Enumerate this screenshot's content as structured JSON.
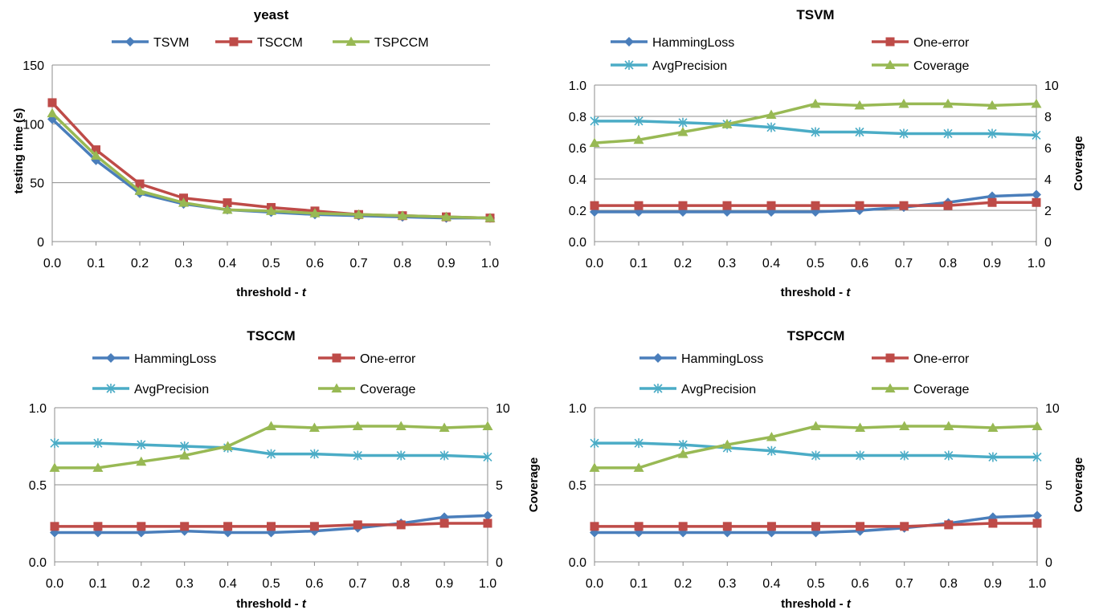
{
  "chart_data": [
    {
      "type": "line",
      "title": "yeast",
      "xlabel": "threshold - t",
      "ylabel": "testing time (s)",
      "x": [
        0.0,
        0.1,
        0.2,
        0.3,
        0.4,
        0.5,
        0.6,
        0.7,
        0.8,
        0.9,
        1.0
      ],
      "x_ticks": [
        "0.0",
        "0.1",
        "0.2",
        "0.3",
        "0.4",
        "0.5",
        "0.6",
        "0.7",
        "0.8",
        "0.9",
        "1.0"
      ],
      "ylim": [
        0,
        150
      ],
      "y_ticks": [
        "0",
        "50",
        "100",
        "150"
      ],
      "grid": true,
      "legend": "top",
      "series": [
        {
          "name": "TSVM",
          "color": "#4a7ebb",
          "marker": "diamond",
          "axis": "left",
          "values": [
            104,
            69,
            41,
            32,
            27,
            25,
            23,
            22,
            21,
            20,
            20
          ]
        },
        {
          "name": "TSCCM",
          "color": "#be4b48",
          "marker": "square",
          "axis": "left",
          "values": [
            118,
            78,
            49,
            37,
            33,
            29,
            26,
            23,
            22,
            21,
            20
          ]
        },
        {
          "name": "TSPCCM",
          "color": "#98b954",
          "marker": "triangle",
          "axis": "left",
          "values": [
            109,
            73,
            43,
            33,
            27,
            26,
            24,
            23,
            22,
            21,
            20
          ]
        }
      ]
    },
    {
      "type": "line",
      "title": "TSVM",
      "xlabel": "threshold - t",
      "ylabel": "",
      "y2label": "Coverage",
      "x": [
        0.0,
        0.1,
        0.2,
        0.3,
        0.4,
        0.5,
        0.6,
        0.7,
        0.8,
        0.9,
        1.0
      ],
      "x_ticks": [
        "0.0",
        "0.1",
        "0.2",
        "0.3",
        "0.4",
        "0.5",
        "0.6",
        "0.7",
        "0.8",
        "0.9",
        "1.0"
      ],
      "ylim": [
        0,
        1.0
      ],
      "y_ticks": [
        "0.0",
        "0.2",
        "0.4",
        "0.6",
        "0.8",
        "1.0"
      ],
      "y2lim": [
        0,
        10
      ],
      "y2_ticks": [
        "0",
        "2",
        "4",
        "6",
        "8",
        "10"
      ],
      "grid": true,
      "legend": "top",
      "series": [
        {
          "name": "HammingLoss",
          "color": "#4a7ebb",
          "marker": "diamond",
          "axis": "left",
          "values": [
            0.19,
            0.19,
            0.19,
            0.19,
            0.19,
            0.19,
            0.2,
            0.22,
            0.25,
            0.29,
            0.3
          ]
        },
        {
          "name": "One-error",
          "color": "#be4b48",
          "marker": "square",
          "axis": "left",
          "values": [
            0.23,
            0.23,
            0.23,
            0.23,
            0.23,
            0.23,
            0.23,
            0.23,
            0.23,
            0.25,
            0.25
          ]
        },
        {
          "name": "AvgPrecision",
          "color": "#4bacc6",
          "marker": "star",
          "axis": "left",
          "values": [
            0.77,
            0.77,
            0.76,
            0.75,
            0.73,
            0.7,
            0.7,
            0.69,
            0.69,
            0.69,
            0.68
          ]
        },
        {
          "name": "Coverage",
          "color": "#98b954",
          "marker": "triangle",
          "axis": "right",
          "values": [
            6.3,
            6.5,
            7.0,
            7.5,
            8.1,
            8.8,
            8.7,
            8.8,
            8.8,
            8.7,
            8.8
          ]
        }
      ]
    },
    {
      "type": "line",
      "title": "TSCCM",
      "xlabel": "threshold - t",
      "ylabel": "",
      "y2label": "Coverage",
      "x": [
        0.0,
        0.1,
        0.2,
        0.3,
        0.4,
        0.5,
        0.6,
        0.7,
        0.8,
        0.9,
        1.0
      ],
      "x_ticks": [
        "0.0",
        "0.1",
        "0.2",
        "0.3",
        "0.4",
        "0.5",
        "0.6",
        "0.7",
        "0.8",
        "0.9",
        "1.0"
      ],
      "ylim": [
        0,
        1.0
      ],
      "y_ticks": [
        "0.0",
        "0.5",
        "1.0"
      ],
      "y2lim": [
        0,
        10
      ],
      "y2_ticks": [
        "0",
        "5",
        "10"
      ],
      "grid": true,
      "legend": "top",
      "series": [
        {
          "name": "HammingLoss",
          "color": "#4a7ebb",
          "marker": "diamond",
          "axis": "left",
          "values": [
            0.19,
            0.19,
            0.19,
            0.2,
            0.19,
            0.19,
            0.2,
            0.22,
            0.25,
            0.29,
            0.3
          ]
        },
        {
          "name": "One-error",
          "color": "#be4b48",
          "marker": "square",
          "axis": "left",
          "values": [
            0.23,
            0.23,
            0.23,
            0.23,
            0.23,
            0.23,
            0.23,
            0.24,
            0.24,
            0.25,
            0.25
          ]
        },
        {
          "name": "AvgPrecision",
          "color": "#4bacc6",
          "marker": "star",
          "axis": "left",
          "values": [
            0.77,
            0.77,
            0.76,
            0.75,
            0.74,
            0.7,
            0.7,
            0.69,
            0.69,
            0.69,
            0.68
          ]
        },
        {
          "name": "Coverage",
          "color": "#98b954",
          "marker": "triangle",
          "axis": "right",
          "values": [
            6.1,
            6.1,
            6.5,
            6.9,
            7.5,
            8.8,
            8.7,
            8.8,
            8.8,
            8.7,
            8.8
          ]
        }
      ]
    },
    {
      "type": "line",
      "title": "TSPCCM",
      "xlabel": "threshold - t",
      "ylabel": "",
      "y2label": "Coverage",
      "x": [
        0.0,
        0.1,
        0.2,
        0.3,
        0.4,
        0.5,
        0.6,
        0.7,
        0.8,
        0.9,
        1.0
      ],
      "x_ticks": [
        "0.0",
        "0.1",
        "0.2",
        "0.3",
        "0.4",
        "0.5",
        "0.6",
        "0.7",
        "0.8",
        "0.9",
        "1.0"
      ],
      "ylim": [
        0,
        1.0
      ],
      "y_ticks": [
        "0.0",
        "0.5",
        "1.0"
      ],
      "y2lim": [
        0,
        10
      ],
      "y2_ticks": [
        "0",
        "5",
        "10"
      ],
      "grid": true,
      "legend": "top",
      "series": [
        {
          "name": "HammingLoss",
          "color": "#4a7ebb",
          "marker": "diamond",
          "axis": "left",
          "values": [
            0.19,
            0.19,
            0.19,
            0.19,
            0.19,
            0.19,
            0.2,
            0.22,
            0.25,
            0.29,
            0.3
          ]
        },
        {
          "name": "One-error",
          "color": "#be4b48",
          "marker": "square",
          "axis": "left",
          "values": [
            0.23,
            0.23,
            0.23,
            0.23,
            0.23,
            0.23,
            0.23,
            0.23,
            0.24,
            0.25,
            0.25
          ]
        },
        {
          "name": "AvgPrecision",
          "color": "#4bacc6",
          "marker": "star",
          "axis": "left",
          "values": [
            0.77,
            0.77,
            0.76,
            0.74,
            0.72,
            0.69,
            0.69,
            0.69,
            0.69,
            0.68,
            0.68
          ]
        },
        {
          "name": "Coverage",
          "color": "#98b954",
          "marker": "triangle",
          "axis": "right",
          "values": [
            6.1,
            6.1,
            7.0,
            7.6,
            8.1,
            8.8,
            8.7,
            8.8,
            8.8,
            8.7,
            8.8
          ]
        }
      ]
    }
  ]
}
